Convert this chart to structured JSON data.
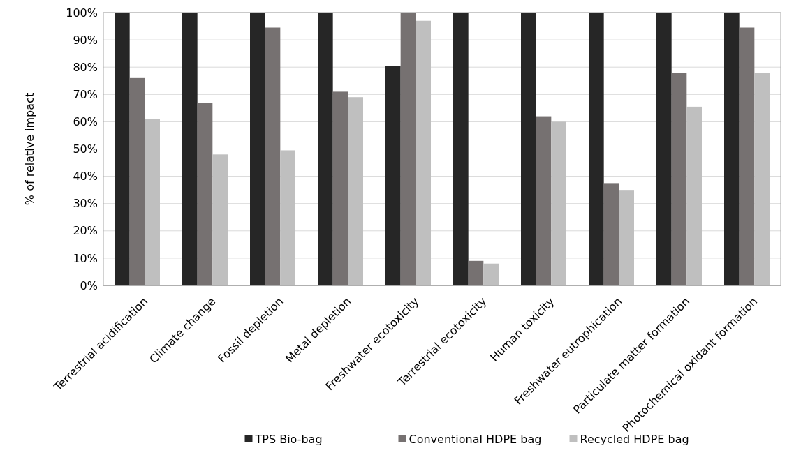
{
  "chart_data": {
    "type": "bar",
    "ylabel": "% of relative impact",
    "categories": [
      "Terrestrial acidification",
      "Climate change",
      "Fossil depletion",
      "Metal depletion",
      "Freshwater ecotoxicity",
      "Terrestrial ecotoxicity",
      "Human toxicity",
      "Freshwater eutrophication",
      "Particulate matter formation",
      "Photochemical oxidant formation"
    ],
    "series": [
      {
        "name": "TPS Bio-bag",
        "color": "#262626",
        "values": [
          100,
          100,
          100,
          100,
          80.5,
          100,
          100,
          100,
          100,
          100
        ]
      },
      {
        "name": "Conventional HDPE bag",
        "color": "#767171",
        "values": [
          76,
          67,
          94.5,
          71,
          100,
          9,
          62,
          37.5,
          78,
          94.5
        ]
      },
      {
        "name": "Recycled HDPE bag",
        "color": "#bfbfbf",
        "values": [
          61,
          48,
          49.5,
          69,
          97,
          8,
          60,
          35,
          65.5,
          78
        ]
      }
    ],
    "ylim": [
      0,
      100
    ],
    "yticks": [
      {
        "value": 0,
        "label": "0%"
      },
      {
        "value": 10,
        "label": "10%"
      },
      {
        "value": 20,
        "label": "20%"
      },
      {
        "value": 30,
        "label": "30%"
      },
      {
        "value": 40,
        "label": "40%"
      },
      {
        "value": 50,
        "label": "50%"
      },
      {
        "value": 60,
        "label": "60%"
      },
      {
        "value": 70,
        "label": "70%"
      },
      {
        "value": 80,
        "label": "80%"
      },
      {
        "value": 90,
        "label": "90%"
      },
      {
        "value": 100,
        "label": "100%"
      }
    ],
    "grid": "y",
    "legend": "bottom"
  }
}
